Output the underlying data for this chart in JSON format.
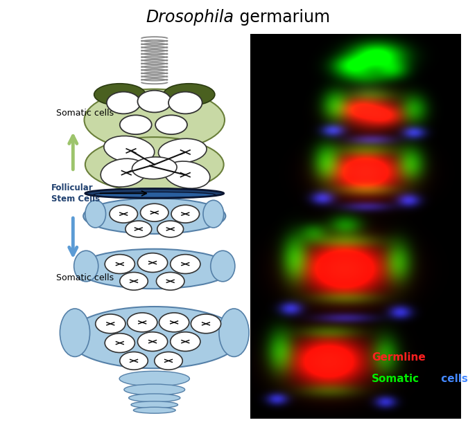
{
  "title_italic": "Drosophila",
  "title_normal": " germarium",
  "title_fontsize": 17,
  "background_color": "#ffffff",
  "photo_bg": "#000000",
  "label_somatic_upper": "Somatic cells",
  "label_somatic_lower": "Somatic cells",
  "label_fsc_line1": "Follicular",
  "label_fsc_line2": "Stem Cells",
  "label_germline": "Germline",
  "label_somatic_green": "Somatic",
  "label_somatic_blue": " cells",
  "arrow_up_color": "#9dc46c",
  "arrow_down_color": "#5b9bd5",
  "fsc_band_color": "#1e3f6e",
  "fsc_band_color2": "#2a5f9e",
  "green_region_color": "#c8d9a5",
  "green_region_edge": "#6a7f3a",
  "light_blue_color": "#a8cce4",
  "light_blue_edge": "#5580a8",
  "dark_olive_color": "#4a6020",
  "dark_olive_edge": "#2a3a10",
  "germline_color": "#ffffff",
  "germline_edge": "#333333",
  "spring_color": "#888888",
  "spring_edge": "#555555",
  "fusome_color": "#111111",
  "red_text_color": "#ff2020",
  "green_text_color": "#00ee00",
  "blue_text_color": "#4488ff",
  "label_font_bold": true
}
